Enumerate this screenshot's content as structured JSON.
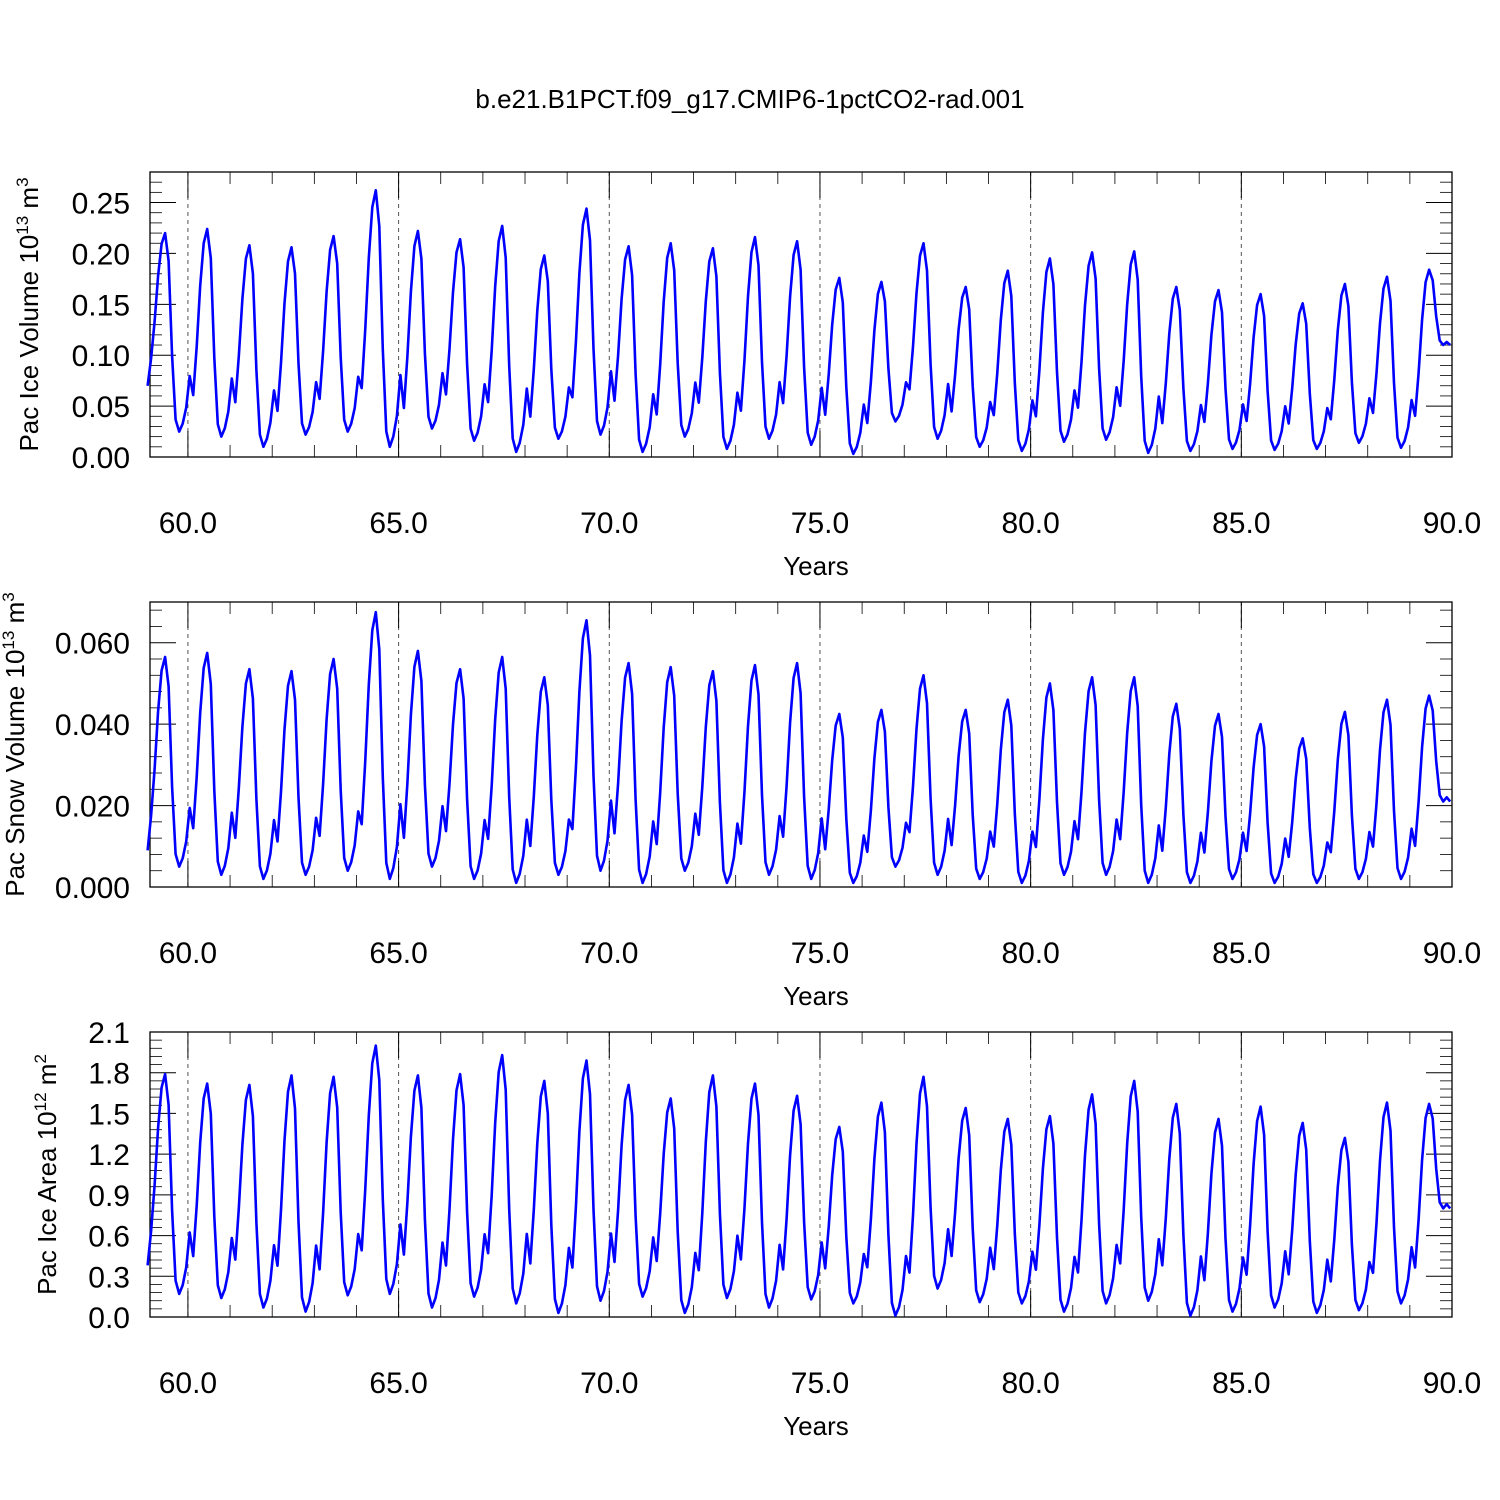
{
  "figure": {
    "title": "b.e21.B1PCT.f09_g17.CMIP6-1pctCO2-rad.001"
  },
  "chart_data": [
    {
      "type": "line",
      "name": "ice-volume",
      "xlabel": "Years",
      "ylabel": "Pac Ice Volume 10",
      "ylabel_exp": "13",
      "ylabel_unit": " m",
      "ylabel_unit_exp": "3",
      "xlim": [
        59.1,
        90.0
      ],
      "ylim": [
        0.0,
        0.28
      ],
      "xticks": [
        60,
        65,
        70,
        75,
        80,
        85,
        90
      ],
      "xtick_labels": [
        "60.0",
        "65.0",
        "70.0",
        "75.0",
        "80.0",
        "85.0",
        "90.0"
      ],
      "yticks": [
        0.0,
        0.05,
        0.1,
        0.15,
        0.2,
        0.25
      ],
      "ytick_labels": [
        "0.00",
        "0.05",
        "0.10",
        "0.15",
        "0.20",
        "0.25"
      ],
      "reference_lines_x": [
        60,
        65,
        70,
        75,
        80,
        85
      ],
      "line_color": "#0000ff",
      "x_start": 59.042,
      "x_step": 0.08333,
      "annual_peaks": [
        0.22,
        0.224,
        0.208,
        0.206,
        0.217,
        0.262,
        0.222,
        0.214,
        0.227,
        0.198,
        0.244,
        0.207,
        0.21,
        0.205,
        0.216,
        0.212,
        0.176,
        0.172,
        0.21,
        0.167,
        0.183,
        0.195,
        0.201,
        0.202,
        0.167,
        0.164,
        0.16,
        0.151,
        0.17,
        0.177,
        0.184
      ],
      "annual_minima": [
        0.025,
        0.02,
        0.01,
        0.022,
        0.025,
        0.01,
        0.028,
        0.016,
        0.005,
        0.018,
        0.022,
        0.005,
        0.02,
        0.008,
        0.018,
        0.012,
        0.003,
        0.035,
        0.018,
        0.01,
        0.006,
        0.015,
        0.017,
        0.004,
        0.006,
        0.008,
        0.007,
        0.008,
        0.014,
        0.009,
        0.11
      ],
      "first_value": 0.07,
      "last_value": 0.11
    },
    {
      "type": "line",
      "name": "snow-volume",
      "xlabel": "Years",
      "ylabel": "Pac Snow Volume 10",
      "ylabel_exp": "13",
      "ylabel_unit": " m",
      "ylabel_unit_exp": "3",
      "xlim": [
        59.1,
        90.0
      ],
      "ylim": [
        0.0,
        0.07
      ],
      "xticks": [
        60,
        65,
        70,
        75,
        80,
        85,
        90
      ],
      "xtick_labels": [
        "60.0",
        "65.0",
        "70.0",
        "75.0",
        "80.0",
        "85.0",
        "90.0"
      ],
      "yticks": [
        0.0,
        0.02,
        0.04,
        0.06
      ],
      "ytick_labels": [
        "0.000",
        "0.020",
        "0.040",
        "0.060"
      ],
      "reference_lines_x": [
        60,
        65,
        70,
        75,
        80,
        85
      ],
      "line_color": "#0000ff",
      "x_start": 59.042,
      "x_step": 0.08333,
      "annual_peaks": [
        0.0565,
        0.0575,
        0.0535,
        0.053,
        0.056,
        0.0675,
        0.058,
        0.0535,
        0.0565,
        0.0515,
        0.0655,
        0.055,
        0.054,
        0.053,
        0.0545,
        0.055,
        0.0425,
        0.0435,
        0.052,
        0.0435,
        0.046,
        0.05,
        0.0515,
        0.0515,
        0.045,
        0.0425,
        0.04,
        0.0365,
        0.043,
        0.046,
        0.047
      ],
      "annual_minima": [
        0.005,
        0.003,
        0.002,
        0.003,
        0.004,
        0.002,
        0.005,
        0.002,
        0.001,
        0.003,
        0.004,
        0.001,
        0.004,
        0.001,
        0.003,
        0.002,
        0.001,
        0.005,
        0.003,
        0.002,
        0.001,
        0.003,
        0.003,
        0.001,
        0.001,
        0.002,
        0.001,
        0.001,
        0.002,
        0.002,
        0.021
      ],
      "first_value": 0.009,
      "last_value": 0.021
    },
    {
      "type": "line",
      "name": "ice-area",
      "xlabel": "Years",
      "ylabel": "Pac Ice Area 10",
      "ylabel_exp": "12",
      "ylabel_unit": " m",
      "ylabel_unit_exp": "2",
      "xlim": [
        59.1,
        90.0
      ],
      "ylim": [
        0.0,
        2.1
      ],
      "xticks": [
        60,
        65,
        70,
        75,
        80,
        85,
        90
      ],
      "xtick_labels": [
        "60.0",
        "65.0",
        "70.0",
        "75.0",
        "80.0",
        "85.0",
        "90.0"
      ],
      "yticks": [
        0.0,
        0.3,
        0.6,
        0.9,
        1.2,
        1.5,
        1.8,
        2.1
      ],
      "ytick_labels": [
        "0.0",
        "0.3",
        "0.6",
        "0.9",
        "1.2",
        "1.5",
        "1.8",
        "2.1"
      ],
      "reference_lines_x": [
        60,
        65,
        70,
        75,
        80,
        85
      ],
      "line_color": "#0000ff",
      "x_start": 59.042,
      "x_step": 0.08333,
      "annual_peaks": [
        1.79,
        1.72,
        1.71,
        1.78,
        1.77,
        2.0,
        1.78,
        1.79,
        1.93,
        1.74,
        1.89,
        1.71,
        1.61,
        1.78,
        1.72,
        1.63,
        1.4,
        1.58,
        1.77,
        1.54,
        1.46,
        1.48,
        1.64,
        1.74,
        1.57,
        1.46,
        1.55,
        1.43,
        1.32,
        1.58,
        1.57
      ],
      "annual_minima": [
        0.17,
        0.14,
        0.07,
        0.04,
        0.16,
        0.17,
        0.07,
        0.15,
        0.1,
        0.03,
        0.12,
        0.15,
        0.03,
        0.14,
        0.07,
        0.13,
        0.1,
        0.01,
        0.21,
        0.11,
        0.1,
        0.04,
        0.1,
        0.12,
        0.01,
        0.04,
        0.07,
        0.03,
        0.05,
        0.1,
        0.8
      ],
      "first_value": 0.38,
      "last_value": 0.8
    }
  ]
}
